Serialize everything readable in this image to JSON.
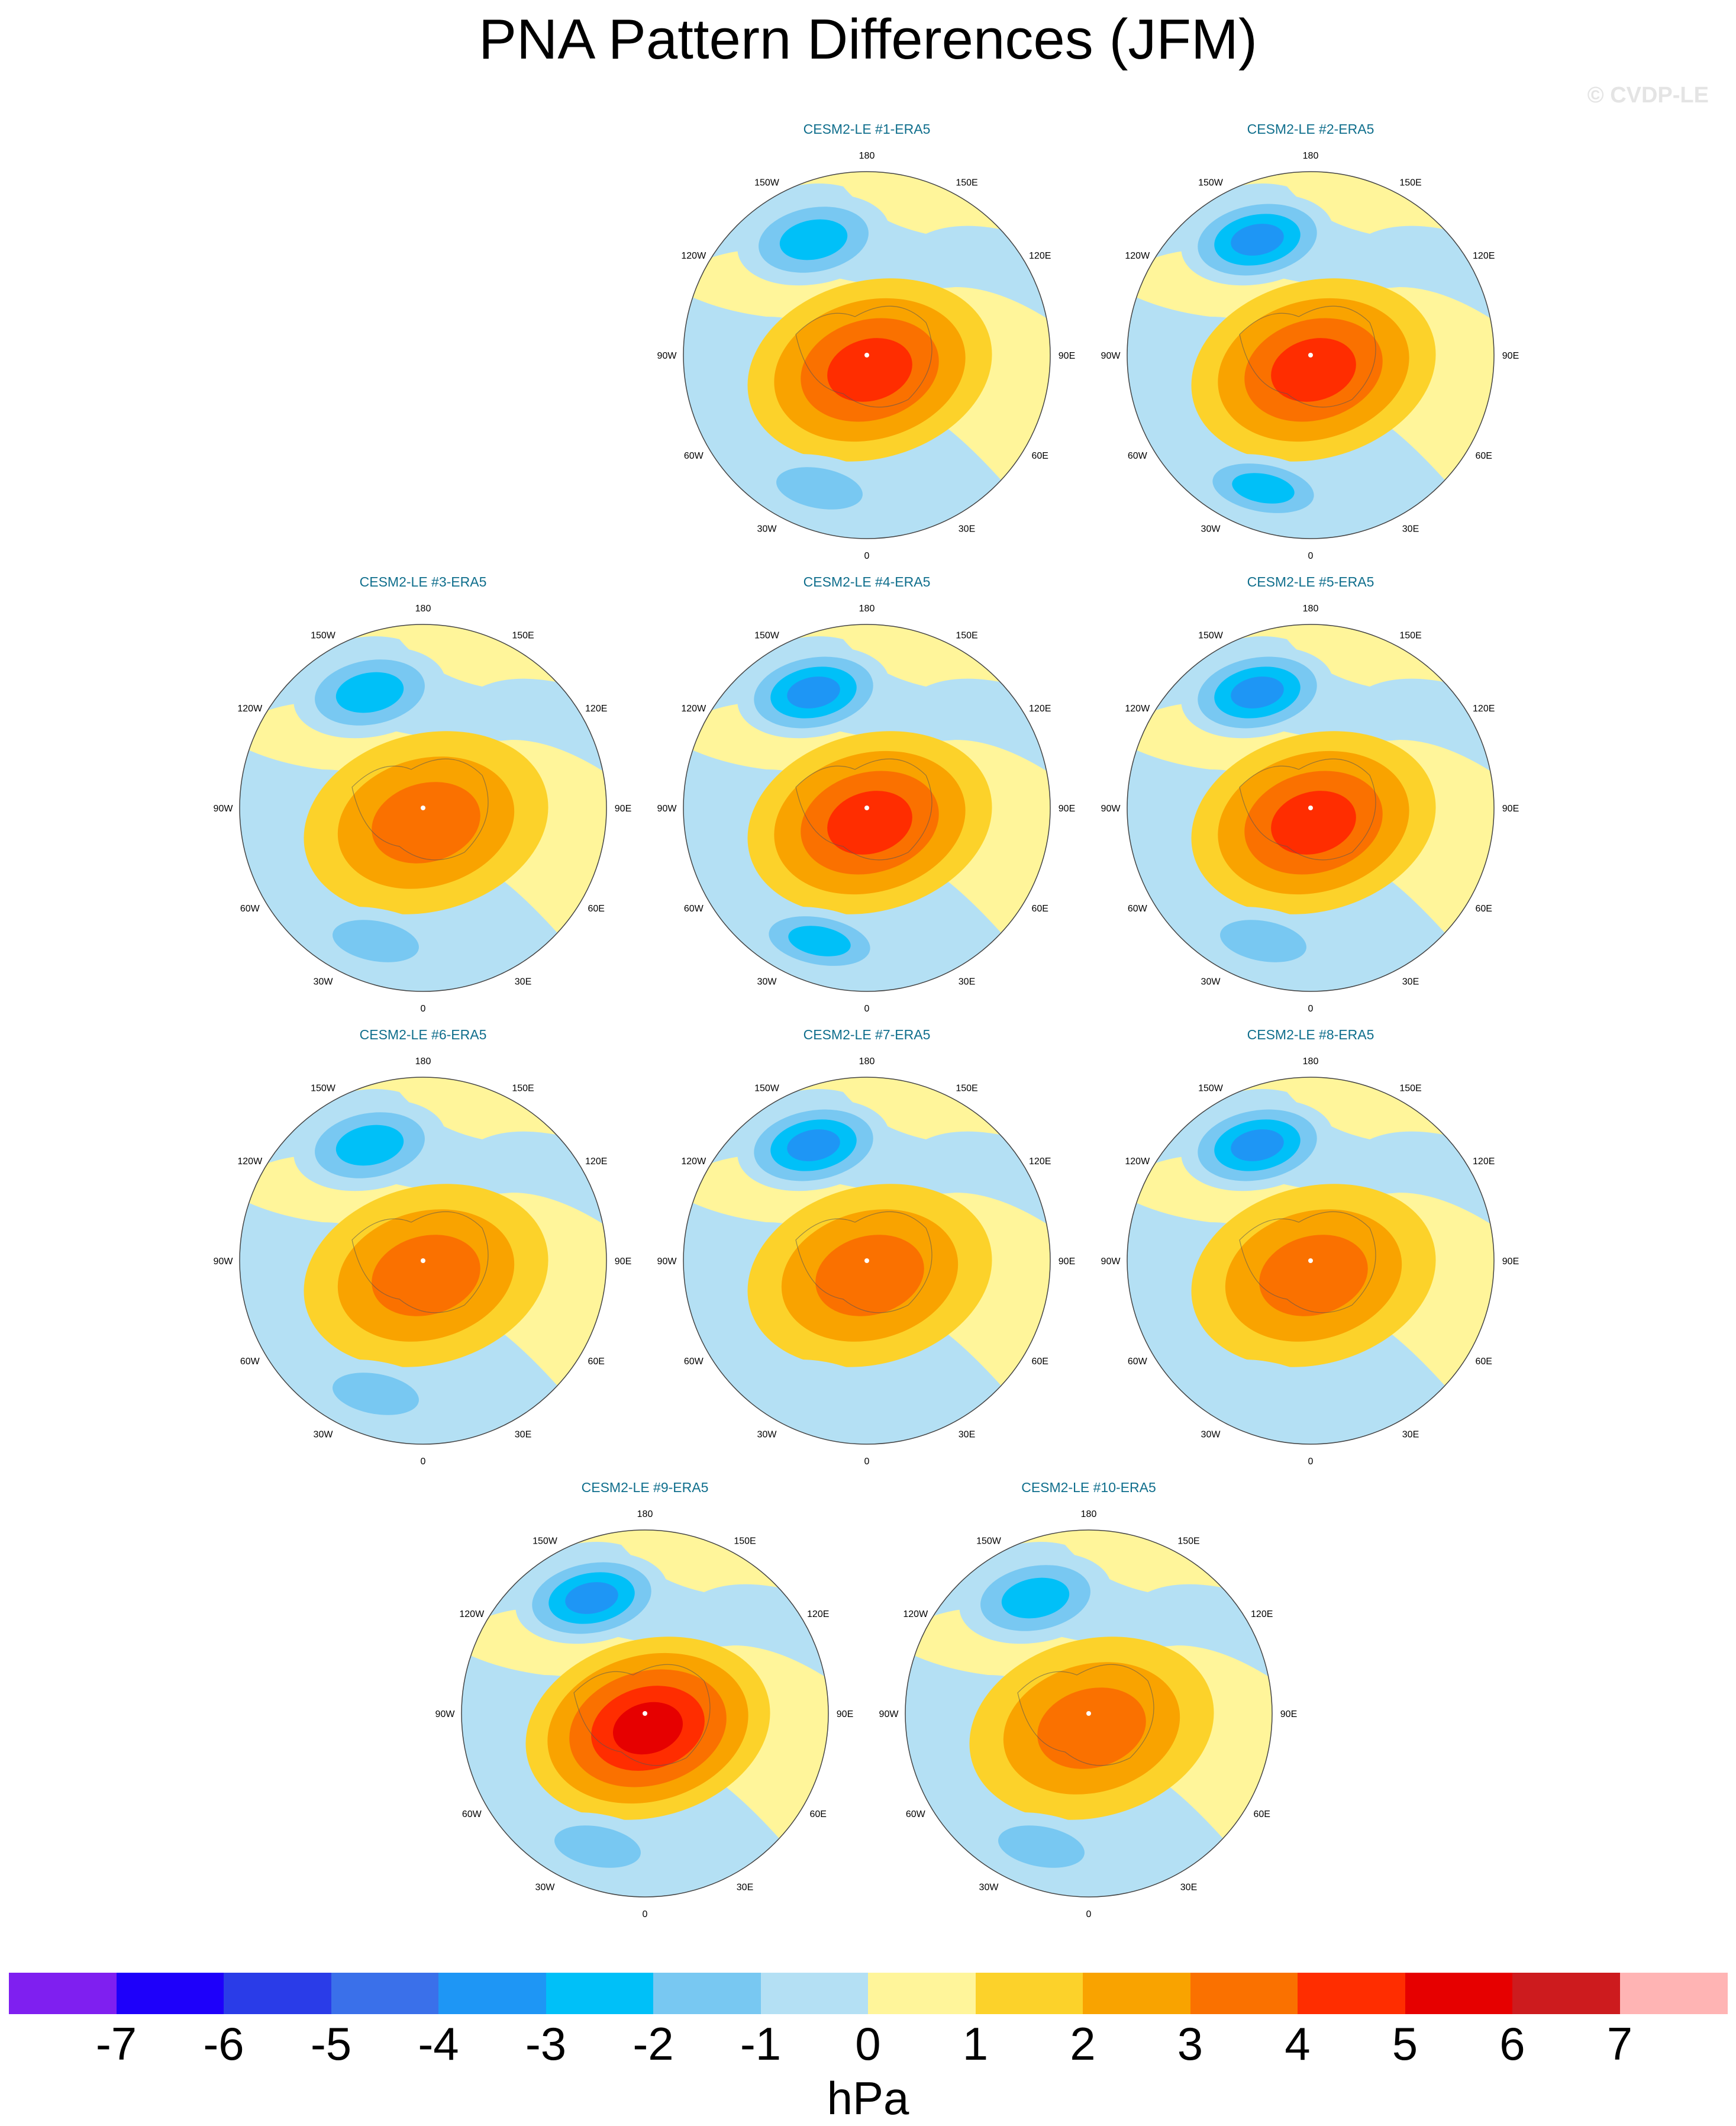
{
  "title": "PNA Pattern Differences (JFM)",
  "watermark": "© CVDP-LE",
  "map_labels": {
    "top": "180",
    "bottom": "0",
    "left": "90W",
    "right": "90E",
    "upper_left": "150W",
    "upper_right": "150E",
    "mid_upper_left": "120W",
    "mid_upper_right": "120E",
    "mid_lower_left": "60W",
    "mid_lower_right": "60E",
    "lower_left": "30W",
    "lower_right": "30E"
  },
  "panels": [
    {
      "title": "CESM2-LE #1-ERA5",
      "pacific_low": -3,
      "arctic_high": 4,
      "atlantic_low": -2
    },
    {
      "title": "CESM2-LE #2-ERA5",
      "pacific_low": -4,
      "arctic_high": 4,
      "atlantic_low": -3
    },
    {
      "title": "CESM2-LE #3-ERA5",
      "pacific_low": -3,
      "arctic_high": 3,
      "atlantic_low": -2
    },
    {
      "title": "CESM2-LE #4-ERA5",
      "pacific_low": -4,
      "arctic_high": 4,
      "atlantic_low": -3
    },
    {
      "title": "CESM2-LE #5-ERA5",
      "pacific_low": -4,
      "arctic_high": 4,
      "atlantic_low": -2
    },
    {
      "title": "CESM2-LE #6-ERA5",
      "pacific_low": -3,
      "arctic_high": 3,
      "atlantic_low": -2
    },
    {
      "title": "CESM2-LE #7-ERA5",
      "pacific_low": -4,
      "arctic_high": 3,
      "atlantic_low": -1
    },
    {
      "title": "CESM2-LE #8-ERA5",
      "pacific_low": -4,
      "arctic_high": 3,
      "atlantic_low": -1
    },
    {
      "title": "CESM2-LE #9-ERA5",
      "pacific_low": -4,
      "arctic_high": 5,
      "atlantic_low": -2
    },
    {
      "title": "CESM2-LE #10-ERA5",
      "pacific_low": -3,
      "arctic_high": 3,
      "atlantic_low": -2
    }
  ],
  "colorbar": {
    "unit": "hPa",
    "ticks": [
      "-7",
      "-6",
      "-5",
      "-4",
      "-3",
      "-2",
      "-1",
      "0",
      "1",
      "2",
      "3",
      "4",
      "5",
      "6",
      "7"
    ],
    "colors": [
      "#7f1ff0",
      "#1e00fa",
      "#2a3ce8",
      "#3a70ea",
      "#1e96f5",
      "#00c0f8",
      "#78c8f2",
      "#b4e0f4",
      "#fff59a",
      "#fcd22a",
      "#f9a300",
      "#fa7100",
      "#ff2d00",
      "#e60000",
      "#cd1b1e",
      "#ffb4b4"
    ]
  }
}
